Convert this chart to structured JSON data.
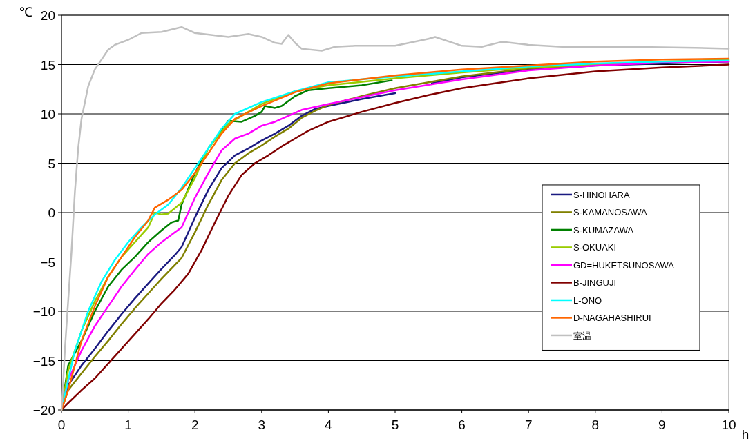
{
  "chart_data": {
    "type": "line",
    "xlabel": "h",
    "ylabel": "℃",
    "xlim": [
      0,
      10
    ],
    "ylim": [
      -20,
      20
    ],
    "xticks": [
      0,
      1,
      2,
      3,
      4,
      5,
      6,
      7,
      8,
      9,
      10
    ],
    "yticks": [
      {
        "value": -20,
        "label": "−20"
      },
      {
        "value": -15,
        "label": "−15"
      },
      {
        "value": -10,
        "label": "−10"
      },
      {
        "value": -5,
        "label": "−5"
      },
      0,
      5,
      10,
      15,
      20
    ],
    "grid": "y",
    "legend": "right",
    "series": [
      {
        "name": "S-HINOHARA",
        "color": "#1a1a80",
        "x": [
          0,
          0.1,
          0.3,
          0.5,
          0.7,
          0.9,
          1.1,
          1.3,
          1.5,
          1.7,
          1.8,
          2.0,
          2.2,
          2.4,
          2.6,
          2.8,
          3.0,
          3.2,
          3.4,
          3.6,
          3.8,
          4.0,
          4.5,
          5.0,
          5.3,
          5.55,
          6,
          7,
          8,
          9,
          10
        ],
        "values": [
          -20,
          -17.5,
          -15.5,
          -13.8,
          -12,
          -10.3,
          -8.7,
          -7.2,
          -5.7,
          -4.3,
          -3.5,
          -0.5,
          2.3,
          4.5,
          5.8,
          6.5,
          7.3,
          8,
          8.8,
          9.8,
          10.5,
          10.8,
          11.5,
          12.1,
          null,
          13.1,
          13.7,
          14.5,
          14.9,
          15.1,
          15.3
        ]
      },
      {
        "name": "S-KAMANOSAWA",
        "color": "#808000",
        "x": [
          0,
          0.1,
          0.3,
          0.5,
          0.7,
          0.9,
          1.1,
          1.3,
          1.5,
          1.7,
          1.8,
          2.0,
          2.2,
          2.4,
          2.6,
          2.8,
          3.0,
          3.2,
          3.4,
          3.6,
          3.8,
          4.0,
          4.5,
          5,
          6,
          7,
          8,
          9,
          10
        ],
        "values": [
          -20,
          -18,
          -16.3,
          -14.6,
          -13,
          -11.3,
          -9.7,
          -8.2,
          -6.7,
          -5.3,
          -4.6,
          -2,
          0.8,
          3.3,
          5,
          6,
          6.8,
          7.7,
          8.5,
          9.6,
          10.3,
          10.9,
          11.8,
          12.6,
          13.8,
          14.6,
          15,
          15.2,
          15.4
        ]
      },
      {
        "name": "S-KUMAZAWA",
        "color": "#008000",
        "x": [
          0,
          0.1,
          0.3,
          0.5,
          0.7,
          0.9,
          1.1,
          1.3,
          1.5,
          1.65,
          1.75,
          1.8,
          2.0,
          2.2,
          2.5,
          2.7,
          2.9,
          3.0,
          3.05,
          3.2,
          3.3,
          3.5,
          3.7,
          4.0,
          4.5,
          4.95
        ],
        "values": [
          -20,
          -15.5,
          -13,
          -10,
          -7.5,
          -5.8,
          -4.5,
          -3,
          -1.8,
          -1,
          -0.8,
          0.8,
          4,
          6.5,
          9.3,
          9.2,
          9.8,
          10.2,
          10.8,
          10.6,
          10.8,
          11.8,
          12.4,
          12.6,
          12.9,
          13.4
        ]
      },
      {
        "name": "S-OKUAKI",
        "color": "#99cc00",
        "x": [
          0,
          0.1,
          0.3,
          0.5,
          0.7,
          0.9,
          1.1,
          1.3,
          1.4,
          1.5,
          1.6,
          1.8,
          2.0,
          2.2,
          2.5,
          3.0,
          3.5,
          4.0,
          5,
          6,
          7,
          8,
          9,
          10
        ],
        "values": [
          -20,
          -16,
          -12,
          -9,
          -6.5,
          -4.5,
          -3,
          -1.5,
          0,
          -0.2,
          -0.1,
          1,
          3.5,
          6.5,
          9,
          11,
          12.3,
          12.9,
          13.6,
          14.2,
          14.7,
          15,
          15.3,
          15.5
        ]
      },
      {
        "name": "GD=HUKETSUNOSAWA",
        "color": "#ff00ff",
        "x": [
          0,
          0.1,
          0.3,
          0.5,
          0.7,
          0.9,
          1.1,
          1.3,
          1.5,
          1.7,
          1.8,
          2.0,
          2.2,
          2.4,
          2.6,
          2.8,
          3.0,
          3.2,
          3.4,
          3.6,
          4.0,
          4.5,
          5,
          6,
          7,
          8,
          9,
          10
        ],
        "values": [
          -20,
          -17,
          -14,
          -11.5,
          -9.5,
          -7.5,
          -5.8,
          -4.2,
          -3,
          -2,
          -1.5,
          1.5,
          4,
          6.3,
          7.5,
          8,
          8.8,
          9.2,
          9.8,
          10.4,
          11,
          11.7,
          12.4,
          13.5,
          14.4,
          14.9,
          15.2,
          15.3
        ]
      },
      {
        "name": "B-JINGUJI",
        "color": "#800000",
        "x": [
          0,
          0.1,
          0.3,
          0.5,
          0.7,
          0.9,
          1.1,
          1.3,
          1.5,
          1.7,
          1.9,
          2.1,
          2.3,
          2.5,
          2.7,
          2.9,
          3.1,
          3.3,
          3.5,
          3.7,
          4.0,
          4.5,
          5,
          5.5,
          6,
          7,
          8,
          9,
          10
        ],
        "values": [
          -20,
          -19.3,
          -18,
          -16.8,
          -15.3,
          -13.8,
          -12.3,
          -10.8,
          -9.2,
          -7.8,
          -6.2,
          -3.8,
          -1,
          1.7,
          3.8,
          5,
          5.8,
          6.7,
          7.5,
          8.3,
          9.2,
          10.2,
          11.1,
          11.9,
          12.6,
          13.6,
          14.3,
          14.7,
          15
        ]
      },
      {
        "name": "L-ONO",
        "color": "#00ffff",
        "x": [
          0,
          0.1,
          0.2,
          0.4,
          0.6,
          0.8,
          1.0,
          1.2,
          1.4,
          1.6,
          1.8,
          2.0,
          2.2,
          2.4,
          2.6,
          3.0,
          3.5,
          4.0,
          5,
          6,
          7,
          8,
          9,
          10
        ],
        "values": [
          -20,
          -17,
          -14,
          -10,
          -7,
          -4.8,
          -3,
          -1.5,
          -0.2,
          0.8,
          2.5,
          4.5,
          6.5,
          8.5,
          10,
          11.2,
          12.3,
          13.2,
          13.8,
          14.3,
          14.8,
          15.1,
          15.3,
          15.4
        ]
      },
      {
        "name": "D-NAGAHASHIRUI",
        "color": "#ff6600",
        "x": [
          0,
          0.1,
          0.3,
          0.5,
          0.7,
          0.9,
          1.1,
          1.3,
          1.4,
          1.6,
          1.8,
          2.0,
          2.2,
          2.4,
          2.6,
          3.0,
          3.5,
          4.0,
          5,
          6,
          7,
          8,
          9,
          10
        ],
        "values": [
          -20,
          -18,
          -13,
          -9.5,
          -6.5,
          -4.5,
          -2.5,
          -0.8,
          0.5,
          1.3,
          2.3,
          4,
          6,
          8,
          9.5,
          10.8,
          12.2,
          13.1,
          13.9,
          14.5,
          14.9,
          15.3,
          15.5,
          15.6
        ]
      },
      {
        "name": "室温",
        "color": "#c0c0c0",
        "x": [
          0,
          0.02,
          0.05,
          0.1,
          0.15,
          0.2,
          0.25,
          0.3,
          0.4,
          0.5,
          0.6,
          0.7,
          0.8,
          1.0,
          1.2,
          1.5,
          1.8,
          2.0,
          2.5,
          2.8,
          3.0,
          3.2,
          3.3,
          3.4,
          3.5,
          3.6,
          3.9,
          4.1,
          4.4,
          5.0,
          5.5,
          5.6,
          6.0,
          6.3,
          6.6,
          7.0,
          7.5,
          8.5,
          9.5,
          10
        ],
        "values": [
          -20,
          -18,
          -14,
          -9,
          -4,
          2,
          6.5,
          9.5,
          12.8,
          14.5,
          15.5,
          16.5,
          17,
          17.5,
          18.2,
          18.3,
          18.8,
          18.2,
          17.8,
          18.1,
          17.8,
          17.2,
          17.1,
          18,
          17.2,
          16.6,
          16.4,
          16.8,
          16.9,
          16.9,
          17.6,
          17.8,
          16.9,
          16.8,
          17.3,
          17,
          16.8,
          16.8,
          16.7,
          16.6
        ]
      }
    ]
  }
}
